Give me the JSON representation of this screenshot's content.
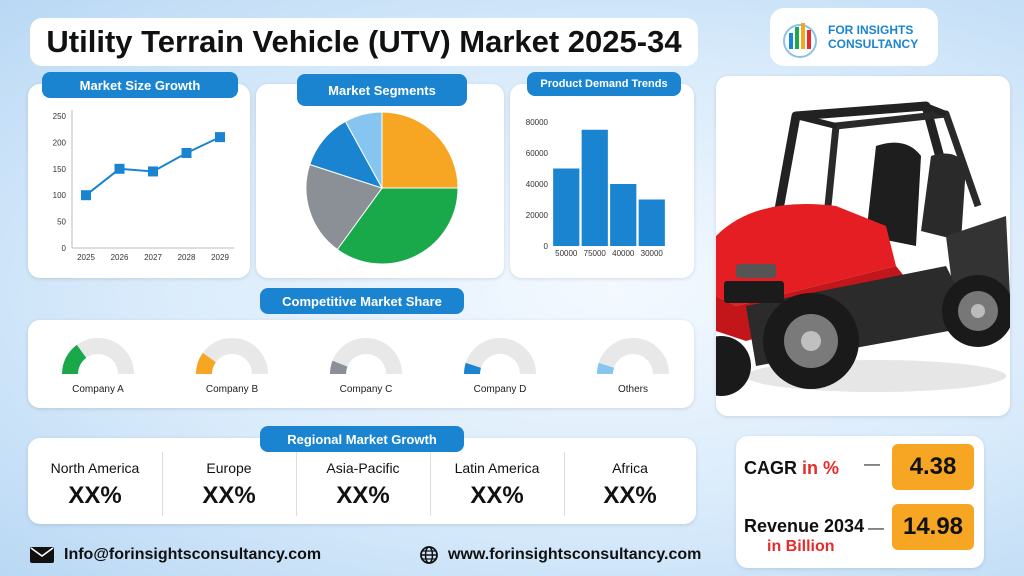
{
  "title": "Utility Terrain Vehicle (UTV) Market 2025-34",
  "logo": {
    "line1": "FOR INSIGHTS",
    "line2": "CONSULTANCY"
  },
  "market_size": {
    "heading": "Market Size Growth",
    "chart_data": {
      "type": "line",
      "x": [
        "2025",
        "2026",
        "2027",
        "2028",
        "2029"
      ],
      "values": [
        100,
        150,
        145,
        180,
        210
      ],
      "ylim": [
        0,
        250
      ],
      "yticks": [
        "0",
        "50",
        "100",
        "150",
        "200",
        "250"
      ],
      "color": "#1a84d0"
    }
  },
  "segments": {
    "heading": "Market Segments",
    "chart_data": {
      "type": "pie",
      "values": [
        25,
        35,
        20,
        12,
        8
      ],
      "colors": [
        "#f6a623",
        "#19a84a",
        "#8a9096",
        "#1a84d0",
        "#86c5ef"
      ]
    }
  },
  "demand": {
    "heading": "Product Demand Trends",
    "chart_data": {
      "type": "bar",
      "categories": [
        "50000",
        "75000",
        "40000",
        "30000"
      ],
      "values": [
        50000,
        75000,
        40000,
        30000
      ],
      "ylim": [
        0,
        80000
      ],
      "yticks": [
        "0",
        "20000",
        "40000",
        "60000",
        "80000"
      ],
      "color": "#1a84d0"
    }
  },
  "competitive": {
    "heading": "Competitive Market Share",
    "companies": [
      {
        "label": "Company A",
        "share": 0.3,
        "color": "#19a84a"
      },
      {
        "label": "Company B",
        "share": 0.2,
        "color": "#f6a623"
      },
      {
        "label": "Company C",
        "share": 0.12,
        "color": "#8a9096"
      },
      {
        "label": "Company D",
        "share": 0.1,
        "color": "#1a84d0"
      },
      {
        "label": "Others",
        "share": 0.1,
        "color": "#86c5ef"
      }
    ]
  },
  "regional": {
    "heading": "Regional Market Growth",
    "regions": [
      {
        "name": "North America",
        "value": "XX%"
      },
      {
        "name": "Europe",
        "value": "XX%"
      },
      {
        "name": "Asia-Pacific",
        "value": "XX%"
      },
      {
        "name": "Latin America",
        "value": "XX%"
      },
      {
        "name": "Africa",
        "value": "XX%"
      }
    ]
  },
  "stats": {
    "cagr_label": "CAGR",
    "cagr_unit": "in %",
    "cagr_value": "4.38",
    "revenue_label": "Revenue 2034",
    "revenue_unit": "in Billion",
    "revenue_value": "14.98",
    "dash": "—"
  },
  "footer": {
    "email": "Info@forinsightsconsultancy.com",
    "website": "www.forinsightsconsultancy.com"
  }
}
